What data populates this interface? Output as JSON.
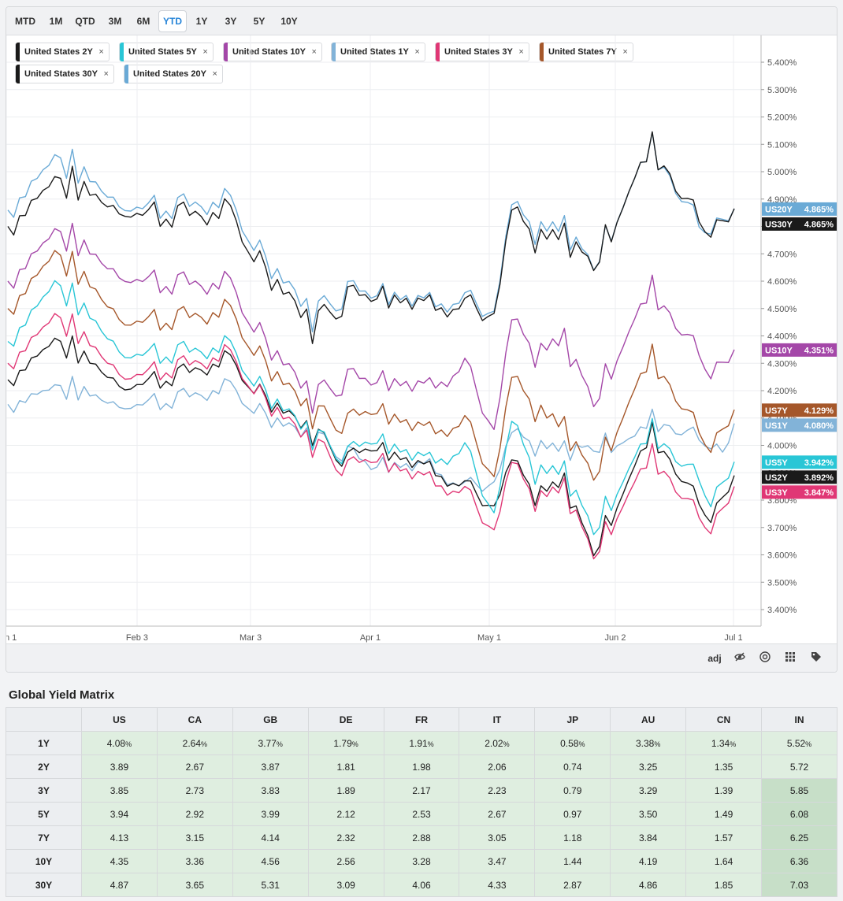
{
  "range_buttons": [
    "MTD",
    "1M",
    "QTD",
    "3M",
    "6M",
    "YTD",
    "1Y",
    "3Y",
    "5Y",
    "10Y"
  ],
  "active_range": "YTD",
  "legend": [
    {
      "label": "United States 2Y",
      "color": "#1a1a1a"
    },
    {
      "label": "United States 5Y",
      "color": "#29c6d6"
    },
    {
      "label": "United States 10Y",
      "color": "#a447a8"
    },
    {
      "label": "United States 1Y",
      "color": "#82b3d8"
    },
    {
      "label": "United States 3Y",
      "color": "#e03775"
    },
    {
      "label": "United States 7Y",
      "color": "#a5572a"
    },
    {
      "label": "United States 30Y",
      "color": "#1a1a1a"
    },
    {
      "label": "United States 20Y",
      "color": "#6aaad6"
    }
  ],
  "remove_glyph": "×",
  "toolbar": {
    "adj_label": "adj",
    "icons": [
      "eye-off-icon",
      "target-icon",
      "grid-icon",
      "tag-icon"
    ]
  },
  "chart_data": {
    "type": "line",
    "xlabels": [
      "n 1",
      "Feb 3",
      "Mar 3",
      "Apr 1",
      "May 1",
      "Jun 2",
      "Jul 1"
    ],
    "yticks": [
      "5.400%",
      "5.300%",
      "5.200%",
      "5.100%",
      "5.000%",
      "4.900%",
      "4.800%",
      "4.700%",
      "4.600%",
      "4.500%",
      "4.400%",
      "4.300%",
      "4.200%",
      "4.100%",
      "4.000%",
      "3.900%",
      "3.800%",
      "3.700%",
      "3.600%",
      "3.500%",
      "3.400%"
    ],
    "ylim": [
      3.34,
      5.44
    ],
    "n_points": 124,
    "series": [
      {
        "name": "United States 1Y",
        "tag": "US1Y",
        "value_label": "4.080%",
        "color": "#82b3d8",
        "anchors": [
          [
            0,
            4.15
          ],
          [
            8,
            4.22
          ],
          [
            20,
            4.15
          ],
          [
            37,
            4.2
          ],
          [
            50,
            4.05
          ],
          [
            62,
            3.95
          ],
          [
            72,
            3.93
          ],
          [
            83,
            3.83
          ],
          [
            86,
            4.04
          ],
          [
            90,
            3.98
          ],
          [
            95,
            3.98
          ],
          [
            107,
            4.03
          ],
          [
            110,
            4.1
          ],
          [
            117,
            4.05
          ],
          [
            122,
            3.98
          ],
          [
            124,
            4.08
          ]
        ]
      },
      {
        "name": "United States 2Y",
        "tag": "US2Y",
        "value_label": "3.892%",
        "color": "#1a1a1a",
        "anchors": [
          [
            0,
            4.24
          ],
          [
            8,
            4.39
          ],
          [
            20,
            4.22
          ],
          [
            37,
            4.3
          ],
          [
            52,
            4.05
          ],
          [
            58,
            3.96
          ],
          [
            62,
            4.02
          ],
          [
            72,
            3.92
          ],
          [
            78,
            3.88
          ],
          [
            83,
            3.74
          ],
          [
            86,
            3.94
          ],
          [
            90,
            3.8
          ],
          [
            95,
            3.86
          ],
          [
            100,
            3.62
          ],
          [
            110,
            4.05
          ],
          [
            120,
            3.74
          ],
          [
            124,
            3.89
          ]
        ]
      },
      {
        "name": "United States 3Y",
        "tag": "US3Y",
        "value_label": "3.847%",
        "color": "#e03775",
        "anchors": [
          [
            0,
            4.3
          ],
          [
            8,
            4.48
          ],
          [
            20,
            4.26
          ],
          [
            37,
            4.32
          ],
          [
            52,
            4.01
          ],
          [
            58,
            3.93
          ],
          [
            62,
            3.98
          ],
          [
            72,
            3.88
          ],
          [
            78,
            3.86
          ],
          [
            83,
            3.65
          ],
          [
            86,
            3.93
          ],
          [
            90,
            3.78
          ],
          [
            95,
            3.84
          ],
          [
            100,
            3.61
          ],
          [
            110,
            3.97
          ],
          [
            120,
            3.7
          ],
          [
            124,
            3.85
          ]
        ]
      },
      {
        "name": "United States 5Y",
        "tag": "US5Y",
        "value_label": "3.942%",
        "color": "#29c6d6",
        "anchors": [
          [
            0,
            4.38
          ],
          [
            8,
            4.6
          ],
          [
            20,
            4.34
          ],
          [
            37,
            4.35
          ],
          [
            52,
            4.04
          ],
          [
            58,
            3.98
          ],
          [
            62,
            4.05
          ],
          [
            72,
            3.95
          ],
          [
            78,
            4.02
          ],
          [
            83,
            3.71
          ],
          [
            86,
            4.08
          ],
          [
            90,
            3.88
          ],
          [
            95,
            3.9
          ],
          [
            100,
            3.7
          ],
          [
            110,
            4.06
          ],
          [
            118,
            3.89
          ],
          [
            120,
            3.8
          ],
          [
            124,
            3.94
          ]
        ]
      },
      {
        "name": "United States 7Y",
        "tag": "US7Y",
        "value_label": "4.129%",
        "color": "#a5572a",
        "anchors": [
          [
            0,
            4.5
          ],
          [
            8,
            4.71
          ],
          [
            20,
            4.46
          ],
          [
            37,
            4.48
          ],
          [
            52,
            4.12
          ],
          [
            58,
            4.1
          ],
          [
            62,
            4.16
          ],
          [
            72,
            4.06
          ],
          [
            78,
            4.12
          ],
          [
            83,
            3.84
          ],
          [
            86,
            4.24
          ],
          [
            90,
            4.11
          ],
          [
            95,
            4.06
          ],
          [
            100,
            3.9
          ],
          [
            110,
            4.33
          ],
          [
            120,
            4.0
          ],
          [
            124,
            4.13
          ]
        ]
      },
      {
        "name": "United States 10Y",
        "tag": "US10Y",
        "value_label": "4.351%",
        "color": "#a447a8",
        "anchors": [
          [
            0,
            4.6
          ],
          [
            8,
            4.79
          ],
          [
            20,
            4.62
          ],
          [
            37,
            4.58
          ],
          [
            52,
            4.18
          ],
          [
            58,
            4.26
          ],
          [
            62,
            4.27
          ],
          [
            72,
            4.22
          ],
          [
            78,
            4.33
          ],
          [
            83,
            4.01
          ],
          [
            86,
            4.45
          ],
          [
            90,
            4.31
          ],
          [
            95,
            4.38
          ],
          [
            100,
            4.17
          ],
          [
            110,
            4.58
          ],
          [
            118,
            4.35
          ],
          [
            120,
            4.27
          ],
          [
            124,
            4.35
          ]
        ]
      },
      {
        "name": "United States 20Y",
        "tag": "US20Y",
        "value_label": "4.865%",
        "color": "#6aaad6",
        "anchors": [
          [
            0,
            4.86
          ],
          [
            8,
            5.06
          ],
          [
            20,
            4.88
          ],
          [
            37,
            4.88
          ],
          [
            52,
            4.48
          ],
          [
            58,
            4.58
          ],
          [
            62,
            4.59
          ],
          [
            72,
            4.53
          ],
          [
            78,
            4.57
          ],
          [
            83,
            4.44
          ],
          [
            86,
            4.87
          ],
          [
            90,
            4.76
          ],
          [
            95,
            4.79
          ],
          [
            100,
            4.67
          ],
          [
            110,
            5.1
          ],
          [
            118,
            4.82
          ],
          [
            120,
            4.8
          ],
          [
            124,
            4.865
          ]
        ]
      },
      {
        "name": "United States 30Y",
        "tag": "US30Y",
        "value_label": "4.865%",
        "color": "#1a1a1a",
        "anchors": [
          [
            0,
            4.8
          ],
          [
            8,
            4.98
          ],
          [
            20,
            4.86
          ],
          [
            37,
            4.84
          ],
          [
            52,
            4.44
          ],
          [
            58,
            4.56
          ],
          [
            62,
            4.58
          ],
          [
            72,
            4.52
          ],
          [
            78,
            4.55
          ],
          [
            83,
            4.43
          ],
          [
            86,
            4.85
          ],
          [
            90,
            4.73
          ],
          [
            95,
            4.76
          ],
          [
            100,
            4.67
          ],
          [
            110,
            5.1
          ],
          [
            118,
            4.84
          ],
          [
            120,
            4.79
          ],
          [
            124,
            4.865
          ]
        ]
      }
    ]
  },
  "matrix": {
    "title": "Global Yield Matrix",
    "columns": [
      "US",
      "CA",
      "GB",
      "DE",
      "FR",
      "IT",
      "JP",
      "AU",
      "CN",
      "IN"
    ],
    "rows": [
      {
        "label": "1Y",
        "values": [
          "4.08",
          "2.64",
          "3.77",
          "1.79",
          "1.91",
          "2.02",
          "0.58",
          "3.38",
          "1.34",
          "5.52"
        ],
        "pct": true
      },
      {
        "label": "2Y",
        "values": [
          "3.89",
          "2.67",
          "3.87",
          "1.81",
          "1.98",
          "2.06",
          "0.74",
          "3.25",
          "1.35",
          "5.72"
        ],
        "pct": false
      },
      {
        "label": "3Y",
        "values": [
          "3.85",
          "2.73",
          "3.83",
          "1.89",
          "2.17",
          "2.23",
          "0.79",
          "3.29",
          "1.39",
          "5.85"
        ],
        "pct": false
      },
      {
        "label": "5Y",
        "values": [
          "3.94",
          "2.92",
          "3.99",
          "2.12",
          "2.53",
          "2.67",
          "0.97",
          "3.50",
          "1.49",
          "6.08"
        ],
        "pct": false
      },
      {
        "label": "7Y",
        "values": [
          "4.13",
          "3.15",
          "4.14",
          "2.32",
          "2.88",
          "3.05",
          "1.18",
          "3.84",
          "1.57",
          "6.25"
        ],
        "pct": false
      },
      {
        "label": "10Y",
        "values": [
          "4.35",
          "3.36",
          "4.56",
          "2.56",
          "3.28",
          "3.47",
          "1.44",
          "4.19",
          "1.64",
          "6.36"
        ],
        "pct": false
      },
      {
        "label": "30Y",
        "values": [
          "4.87",
          "3.65",
          "5.31",
          "3.09",
          "4.06",
          "4.33",
          "2.87",
          "4.86",
          "1.85",
          "7.03"
        ],
        "pct": false
      }
    ],
    "pct_suffix": "%"
  }
}
